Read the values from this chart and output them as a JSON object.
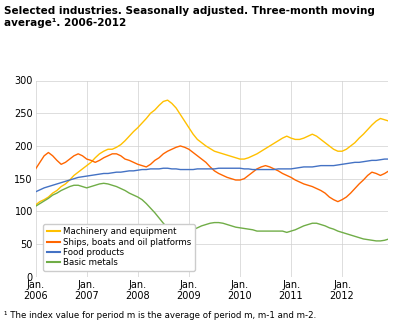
{
  "title": "Selected industries. Seasonally adjusted. Three-month moving\naverage¹. 2006-2012",
  "footnote": "¹ The index value for period m is the average of period m, m-1 and m-2.",
  "xlabel_ticks": [
    "Jan.\n2006",
    "Jan.\n2007",
    "Jan.\n2008",
    "Jan.\n2009",
    "Jan.\n2010",
    "Jan.\n2011",
    "Jan.\n2012"
  ],
  "ylim": [
    0,
    300
  ],
  "yticks": [
    0,
    50,
    100,
    150,
    200,
    250,
    300
  ],
  "colors": {
    "machinery": "#FFC000",
    "ships": "#FF6600",
    "food": "#4472C4",
    "metals": "#70AD47"
  },
  "legend": [
    "Machinery and equipment",
    "Ships, boats and oil platforms",
    "Food products",
    "Basic metals"
  ],
  "machinery": [
    110,
    115,
    118,
    122,
    128,
    132,
    138,
    142,
    148,
    155,
    160,
    165,
    170,
    175,
    182,
    188,
    192,
    195,
    195,
    198,
    202,
    208,
    215,
    222,
    228,
    235,
    242,
    250,
    255,
    262,
    268,
    270,
    265,
    258,
    248,
    238,
    228,
    218,
    210,
    205,
    200,
    196,
    192,
    190,
    188,
    186,
    184,
    182,
    180,
    180,
    182,
    185,
    188,
    192,
    196,
    200,
    204,
    208,
    212,
    215,
    212,
    210,
    210,
    212,
    215,
    218,
    215,
    210,
    205,
    200,
    195,
    192,
    192,
    195,
    200,
    205,
    212,
    218,
    225,
    232,
    238,
    242,
    240,
    238
  ],
  "ships": [
    165,
    175,
    185,
    190,
    185,
    178,
    172,
    175,
    180,
    185,
    188,
    185,
    180,
    178,
    175,
    178,
    182,
    185,
    188,
    188,
    185,
    180,
    178,
    175,
    172,
    170,
    168,
    172,
    178,
    182,
    188,
    192,
    195,
    198,
    200,
    198,
    195,
    190,
    185,
    180,
    175,
    168,
    162,
    158,
    155,
    152,
    150,
    148,
    148,
    150,
    155,
    160,
    165,
    168,
    170,
    168,
    165,
    162,
    158,
    155,
    152,
    148,
    145,
    142,
    140,
    138,
    135,
    132,
    128,
    122,
    118,
    115,
    118,
    122,
    128,
    135,
    142,
    148,
    155,
    160,
    158,
    155,
    158,
    162
  ],
  "food": [
    130,
    133,
    136,
    138,
    140,
    142,
    144,
    146,
    148,
    150,
    152,
    153,
    154,
    155,
    156,
    157,
    158,
    158,
    159,
    160,
    160,
    161,
    162,
    162,
    163,
    164,
    164,
    165,
    165,
    165,
    166,
    166,
    165,
    165,
    164,
    164,
    164,
    164,
    165,
    165,
    165,
    165,
    165,
    166,
    166,
    166,
    166,
    166,
    166,
    165,
    165,
    164,
    164,
    164,
    164,
    164,
    164,
    165,
    165,
    165,
    165,
    166,
    167,
    168,
    168,
    168,
    169,
    170,
    170,
    170,
    170,
    171,
    172,
    173,
    174,
    175,
    175,
    176,
    177,
    178,
    178,
    179,
    180,
    180
  ],
  "metals": [
    108,
    112,
    116,
    120,
    125,
    128,
    132,
    135,
    138,
    140,
    140,
    138,
    136,
    138,
    140,
    142,
    143,
    142,
    140,
    138,
    135,
    132,
    128,
    125,
    122,
    118,
    112,
    105,
    98,
    90,
    82,
    75,
    70,
    68,
    67,
    68,
    70,
    72,
    75,
    78,
    80,
    82,
    83,
    83,
    82,
    80,
    78,
    76,
    75,
    74,
    73,
    72,
    70,
    70,
    70,
    70,
    70,
    70,
    70,
    68,
    70,
    72,
    75,
    78,
    80,
    82,
    82,
    80,
    78,
    75,
    73,
    70,
    68,
    66,
    64,
    62,
    60,
    58,
    57,
    56,
    55,
    55,
    56,
    58
  ]
}
